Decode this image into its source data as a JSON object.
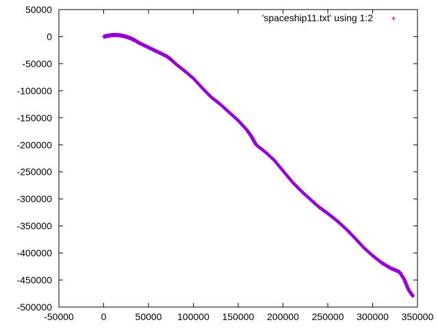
{
  "chart_data": {
    "type": "scatter",
    "title": "",
    "xlabel": "",
    "ylabel": "",
    "xlim": [
      -50000,
      350000
    ],
    "ylim": [
      -500000,
      50000
    ],
    "xticks": [
      -50000,
      0,
      50000,
      100000,
      150000,
      200000,
      250000,
      300000,
      350000
    ],
    "yticks": [
      50000,
      0,
      -50000,
      -100000,
      -150000,
      -200000,
      -250000,
      -300000,
      -350000,
      -400000,
      -450000,
      -500000
    ],
    "xtick_labels": [
      "-50000",
      "0",
      "50000",
      "100000",
      "150000",
      "200000",
      "250000",
      "300000",
      "350000"
    ],
    "ytick_labels": [
      "50000",
      "0",
      "-50000",
      "-100000",
      "-150000",
      "-200000",
      "-250000",
      "-300000",
      "-350000",
      "-400000",
      "-450000",
      "-500000"
    ],
    "grid": false,
    "legend_position": "top-right",
    "marker": "+",
    "series": [
      {
        "name": "'spaceship11.txt' using 1:2",
        "color": "#9400d3",
        "points": [
          [
            0,
            0
          ],
          [
            3000,
            1000
          ],
          [
            6000,
            2000
          ],
          [
            10000,
            3000
          ],
          [
            15000,
            3000
          ],
          [
            20000,
            2000
          ],
          [
            25000,
            0
          ],
          [
            30000,
            -3000
          ],
          [
            35000,
            -7000
          ],
          [
            40000,
            -12000
          ],
          [
            50000,
            -20000
          ],
          [
            60000,
            -28000
          ],
          [
            70000,
            -36000
          ],
          [
            75000,
            -42000
          ],
          [
            80000,
            -50000
          ],
          [
            90000,
            -63000
          ],
          [
            100000,
            -77000
          ],
          [
            110000,
            -95000
          ],
          [
            120000,
            -112000
          ],
          [
            130000,
            -125000
          ],
          [
            140000,
            -140000
          ],
          [
            150000,
            -155000
          ],
          [
            160000,
            -173000
          ],
          [
            165000,
            -185000
          ],
          [
            170000,
            -200000
          ],
          [
            180000,
            -213000
          ],
          [
            190000,
            -228000
          ],
          [
            200000,
            -248000
          ],
          [
            210000,
            -268000
          ],
          [
            220000,
            -285000
          ],
          [
            230000,
            -300000
          ],
          [
            240000,
            -315000
          ],
          [
            250000,
            -327000
          ],
          [
            260000,
            -340000
          ],
          [
            270000,
            -355000
          ],
          [
            280000,
            -372000
          ],
          [
            290000,
            -390000
          ],
          [
            300000,
            -405000
          ],
          [
            310000,
            -418000
          ],
          [
            320000,
            -428000
          ],
          [
            330000,
            -435000
          ],
          [
            335000,
            -448000
          ],
          [
            340000,
            -468000
          ],
          [
            345000,
            -480000
          ]
        ]
      }
    ]
  }
}
